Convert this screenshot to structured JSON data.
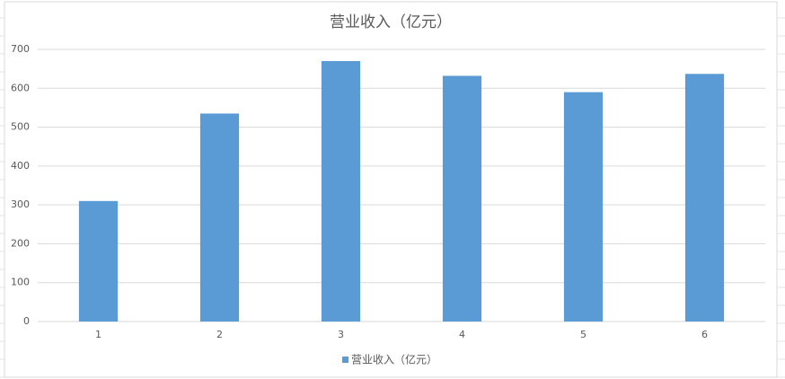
{
  "chart_data": {
    "type": "bar",
    "title": "营业收入（亿元）",
    "categories": [
      "1",
      "2",
      "3",
      "4",
      "5",
      "6"
    ],
    "series": [
      {
        "name": "营业收入（亿元）",
        "color": "#5b9bd5",
        "values": [
          310,
          535,
          670,
          632,
          590,
          637
        ]
      }
    ],
    "ylim": [
      0,
      700
    ],
    "yticks": [
      0,
      100,
      200,
      300,
      400,
      500,
      600,
      700
    ],
    "grid": true,
    "legend": "bottom"
  }
}
